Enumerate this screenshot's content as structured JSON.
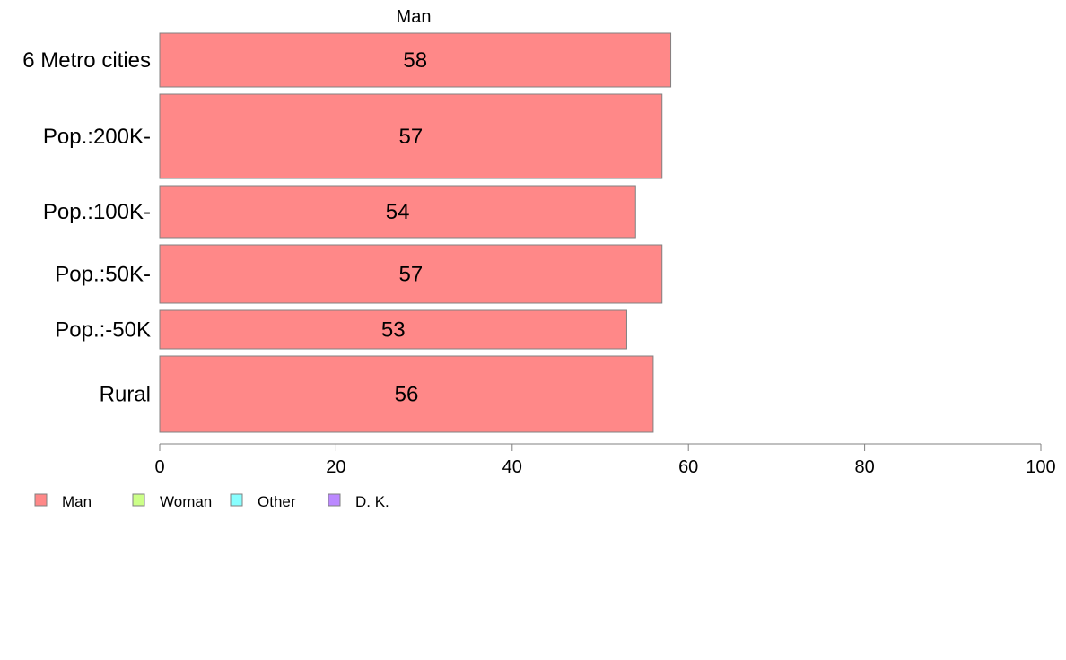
{
  "chart_data": {
    "type": "bar",
    "orientation": "horizontal",
    "panel_title": "Man",
    "categories": [
      "6 Metro cities",
      "Pop.:200K-",
      "Pop.:100K-",
      "Pop.:50K-",
      "Pop.:-50K",
      "Rural"
    ],
    "series": [
      {
        "name": "Man",
        "values": [
          58,
          57,
          54,
          57,
          53,
          56
        ]
      }
    ],
    "xlim": [
      0,
      100
    ],
    "xticks": [
      0,
      20,
      40,
      60,
      80,
      100
    ],
    "grid": false,
    "legend_position": "bottom-left",
    "legend": [
      {
        "label": "Man",
        "color": "#FF8888"
      },
      {
        "label": "Woman",
        "color": "#CCFF88"
      },
      {
        "label": "Other",
        "color": "#88FFFF"
      },
      {
        "label": "D. K.",
        "color": "#BB88FF"
      }
    ],
    "bar_color": "#FF8888",
    "bar_stroke": "#808080"
  }
}
